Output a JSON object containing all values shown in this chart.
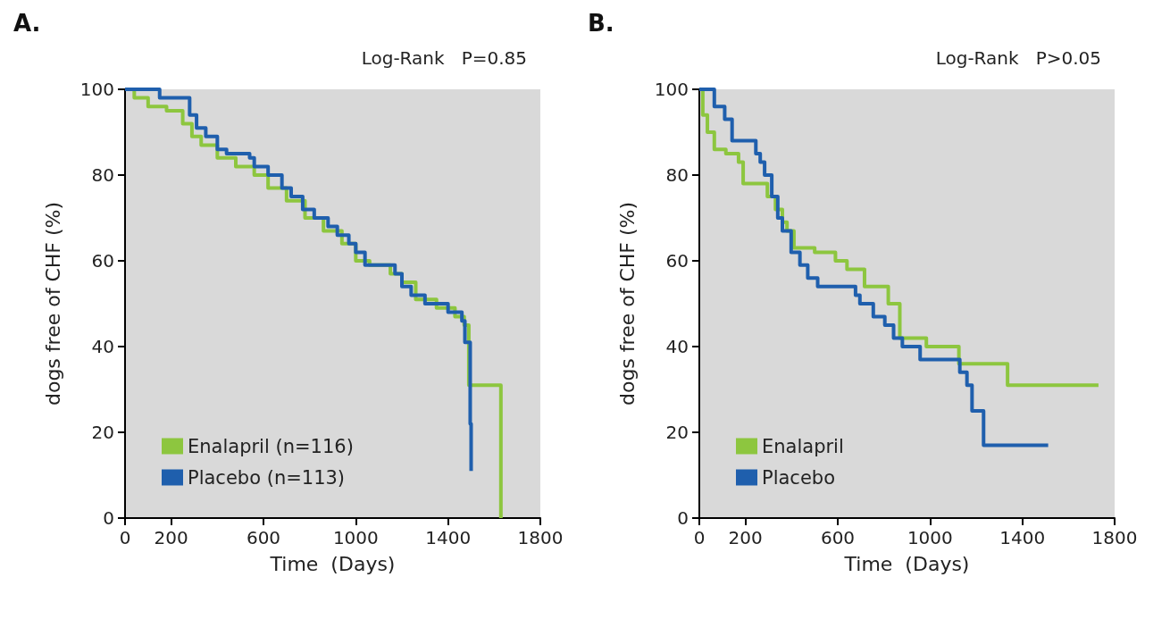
{
  "chart_data": [
    {
      "type": "step",
      "title": "A.",
      "annotations": [
        "Log-Rank   P=0.85"
      ],
      "xlabel": "Time  (Days)",
      "ylabel": "dogs free of CHF (%)",
      "xlim": [
        0,
        1800
      ],
      "xticks": [
        0,
        200,
        600,
        1000,
        1400,
        1800
      ],
      "ylim": [
        0,
        100
      ],
      "yticks": [
        0,
        20,
        40,
        60,
        80,
        100
      ],
      "legend": "bottom left",
      "marker": "none",
      "line_style": "solid",
      "series": [
        {
          "name": "Enalapril (n=116)",
          "color": "#8dc63f",
          "x": [
            0,
            40,
            100,
            180,
            250,
            290,
            330,
            400,
            480,
            560,
            620,
            700,
            780,
            860,
            940,
            1000,
            1060,
            1150,
            1200,
            1260,
            1350,
            1430,
            1470,
            1490,
            1629
          ],
          "values": [
            100,
            98,
            96,
            95,
            92,
            89,
            87,
            84,
            82,
            80,
            77,
            74,
            70,
            67,
            64,
            60,
            59,
            57,
            55,
            51,
            49,
            47,
            45,
            31,
            0
          ]
        },
        {
          "name": "Placebo (n=113)",
          "color": "#1f5fad",
          "x": [
            0,
            110,
            150,
            260,
            280,
            310,
            350,
            400,
            440,
            540,
            560,
            620,
            680,
            720,
            770,
            820,
            880,
            920,
            970,
            1000,
            1040,
            1170,
            1200,
            1240,
            1300,
            1400,
            1460,
            1473,
            1496,
            1500
          ],
          "values": [
            100,
            100,
            98,
            98,
            94,
            91,
            89,
            86,
            85,
            84,
            82,
            80,
            77,
            75,
            72,
            70,
            68,
            66,
            64,
            62,
            59,
            57,
            54,
            52,
            50,
            48,
            46,
            41,
            22,
            11
          ]
        }
      ]
    },
    {
      "type": "step",
      "title": "B.",
      "annotations": [
        "Log-Rank   P>0.05"
      ],
      "xlabel": "Time  (Days)",
      "ylabel": "dogs free of CHF (%)",
      "xlim": [
        0,
        1800
      ],
      "xticks": [
        0,
        200,
        600,
        1000,
        1400,
        1800
      ],
      "ylim": [
        0,
        100
      ],
      "yticks": [
        0,
        20,
        40,
        60,
        80,
        100
      ],
      "legend": "bottom left",
      "marker": "none",
      "line_style": "solid",
      "series": [
        {
          "name": "Enalapril",
          "color": "#8dc63f",
          "x": [
            0,
            15,
            35,
            65,
            115,
            170,
            190,
            295,
            330,
            360,
            380,
            410,
            500,
            590,
            640,
            716,
            819,
            869,
            984,
            1125,
            1336,
            1730
          ],
          "values": [
            100,
            94,
            90,
            86,
            85,
            83,
            78,
            75,
            72,
            69,
            67,
            63,
            62,
            60,
            58,
            54,
            50,
            42,
            40,
            36,
            31,
            31
          ]
        },
        {
          "name": "Placebo",
          "color": "#1f5fad",
          "x": [
            0,
            65,
            110,
            142,
            245,
            264,
            283,
            314,
            340,
            360,
            398,
            436,
            470,
            513,
            677,
            696,
            754,
            804,
            842,
            880,
            957,
            1129,
            1160,
            1182,
            1232,
            1512
          ],
          "values": [
            100,
            96,
            93,
            88,
            85,
            83,
            80,
            75,
            70,
            67,
            62,
            59,
            56,
            54,
            52,
            50,
            47,
            45,
            42,
            40,
            37,
            34,
            31,
            25,
            17,
            17
          ]
        }
      ]
    }
  ]
}
